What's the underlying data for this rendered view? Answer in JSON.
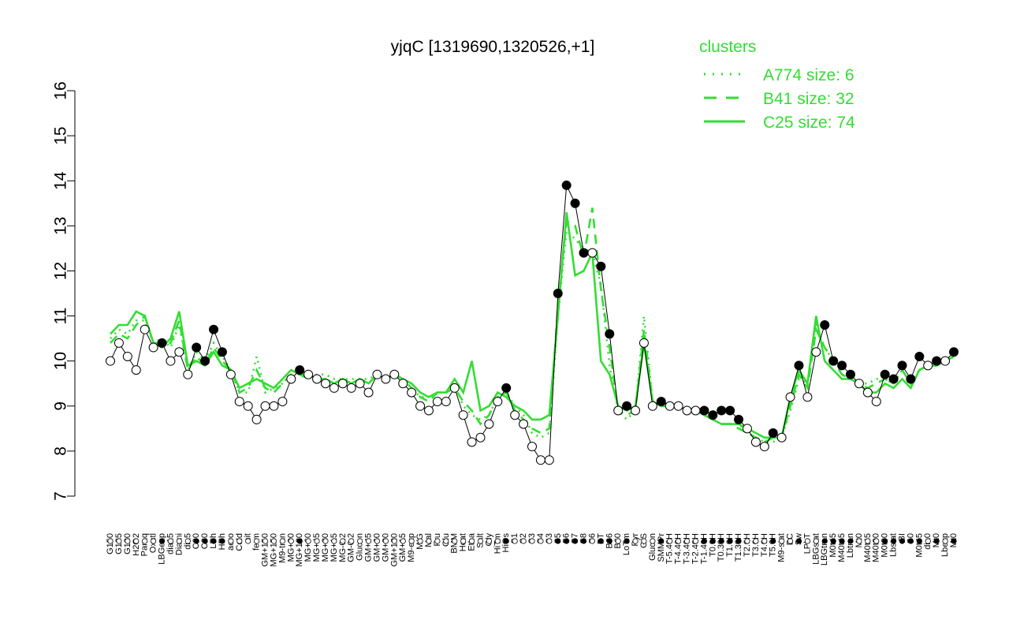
{
  "chart_data": {
    "type": "line",
    "title": "yjqC [1319690,1320526,+1]",
    "xlabel": "",
    "ylabel": "",
    "ylim": [
      7,
      16
    ],
    "yticks": [
      7,
      8,
      9,
      10,
      11,
      12,
      13,
      14,
      15,
      16
    ],
    "grid": false,
    "legend": {
      "placement": "top-right",
      "title": "clusters",
      "entries": [
        {
          "label": "A774 size: 6",
          "style": "dotted"
        },
        {
          "label": "B41 size: 32",
          "style": "dashed"
        },
        {
          "label": "C25 size: 74",
          "style": "solid"
        }
      ]
    },
    "colors": {
      "clusters": "#33dd33",
      "line": "#000000",
      "points_stroke": "#000000"
    },
    "x_tick_labels": [
      "G150",
      "G135",
      "G180",
      "H2O2",
      "Paraq",
      "Oxctl",
      "LBGexp",
      "dia15",
      "Diami",
      "dia5",
      "C90",
      "C30",
      "LPh",
      "HPh",
      "aero",
      "Cold",
      "nit",
      "ferm",
      "GM+150",
      "MG+150",
      "M9-tran",
      "MG+90",
      "MG+120",
      "MG+60",
      "MG+45",
      "MG+30",
      "MG+15",
      "MG-0.2",
      "GM-0.2",
      "Glucon",
      "GM+45",
      "GM+60",
      "GM+90",
      "GM+120",
      "GM+15",
      "M9-exp",
      "M/G",
      "Mal",
      "Fru",
      "Glu",
      "BMM",
      "Heat",
      "Etha",
      "Salt",
      "Gly",
      "HiTm",
      "HiOs",
      "S1",
      "S2",
      "S3",
      "S4",
      "S3",
      "S5",
      "S6",
      "S7",
      "S8",
      "S6",
      "BT",
      "B36",
      "B60",
      "LoTm",
      "Pyr",
      "G/S",
      "Glucon",
      "SMMPr",
      "T-5.40H",
      "T-4.40H",
      "T-3.40H",
      "T-2.40H",
      "T-1.40H",
      "T0.0H",
      "T0.30H",
      "T1.0H",
      "T1.30H",
      "T2.0H",
      "T3.0H",
      "T4.0H",
      "T5.0H",
      "M9-stat",
      "BC",
      "Sw",
      "LPhT",
      "LBGstat",
      "LBGtran",
      "M0t45",
      "M40t45",
      "Lbtran",
      "Mt0",
      "M40t45",
      "M40t90",
      "M0t90",
      "Lbstat",
      "BI",
      "S0",
      "M0t45",
      "dia0",
      "Mt0",
      "Lbexp",
      "Mt0"
    ],
    "series": [
      {
        "role": "observed",
        "values": [
          10.0,
          10.4,
          10.1,
          9.8,
          10.7,
          10.3,
          10.4,
          10.0,
          10.2,
          9.7,
          10.3,
          10.0,
          10.7,
          10.2,
          9.7,
          9.1,
          9.0,
          8.7,
          9.0,
          9.0,
          9.1,
          9.6,
          9.8,
          9.7,
          9.6,
          9.5,
          9.4,
          9.5,
          9.4,
          9.5,
          9.3,
          9.7,
          9.6,
          9.7,
          9.5,
          9.3,
          9.0,
          8.9,
          9.1,
          9.1,
          9.4,
          8.8,
          8.2,
          8.3,
          8.6,
          9.1,
          9.4,
          8.8,
          8.6,
          8.1,
          7.8,
          7.8,
          11.5,
          13.9,
          13.5,
          12.4,
          12.4,
          12.1,
          10.6,
          8.9,
          9.0,
          8.9,
          10.4,
          9.0,
          9.1,
          9.0,
          9.0,
          8.9,
          8.9,
          8.9,
          8.8,
          8.9,
          8.9,
          8.7,
          8.5,
          8.2,
          8.1,
          8.4,
          8.3,
          9.2,
          9.9,
          9.2,
          10.2,
          10.8,
          10.0,
          9.9,
          9.7,
          9.5,
          9.3,
          9.1,
          9.7,
          9.6,
          9.9,
          9.6,
          10.1,
          9.9,
          10.0,
          10.0,
          10.2
        ]
      },
      {
        "name": "A774 size: 6",
        "style": "dotted",
        "values": [
          10.5,
          10.7,
          10.6,
          10.9,
          10.9,
          10.4,
          10.5,
          10.3,
          10.8,
          9.8,
          10.2,
          10.0,
          10.4,
          10.1,
          9.8,
          9.3,
          9.3,
          10.1,
          9.3,
          9.4,
          9.5,
          9.7,
          9.8,
          9.6,
          9.7,
          9.7,
          9.6,
          9.6,
          9.6,
          9.6,
          9.6,
          9.7,
          9.6,
          9.7,
          9.6,
          9.4,
          9.2,
          9.2,
          9.3,
          9.3,
          9.5,
          9.0,
          8.8,
          8.7,
          8.8,
          9.2,
          9.3,
          9.0,
          8.8,
          8.4,
          8.3,
          8.4,
          11.0,
          12.9,
          12.7,
          12.5,
          12.4,
          11.7,
          9.9,
          8.9,
          8.7,
          8.9,
          11.0,
          9.1,
          9.1,
          9.0,
          9.0,
          8.9,
          8.9,
          8.8,
          8.7,
          8.6,
          8.6,
          8.6,
          8.4,
          8.3,
          8.2,
          8.2,
          8.3,
          8.9,
          9.6,
          9.5,
          10.8,
          10.3,
          10.0,
          9.7,
          9.6,
          9.5,
          9.5,
          9.6,
          9.6,
          9.5,
          9.8,
          9.5,
          9.8,
          9.9,
          9.9,
          10.0,
          10.1
        ]
      },
      {
        "name": "B41 size: 32",
        "style": "dashed",
        "values": [
          10.4,
          10.6,
          10.5,
          10.8,
          11.0,
          10.4,
          10.4,
          10.4,
          10.9,
          9.8,
          10.1,
          9.9,
          10.3,
          10.0,
          9.8,
          9.3,
          9.4,
          9.8,
          9.4,
          9.3,
          9.5,
          9.7,
          9.7,
          9.6,
          9.6,
          9.6,
          9.5,
          9.6,
          9.5,
          9.6,
          9.5,
          9.7,
          9.6,
          9.7,
          9.6,
          9.4,
          9.2,
          9.1,
          9.3,
          9.3,
          9.4,
          9.1,
          8.9,
          8.6,
          8.8,
          9.2,
          9.3,
          8.9,
          8.7,
          8.5,
          8.4,
          8.5,
          11.2,
          13.1,
          13.0,
          12.3,
          13.4,
          11.6,
          10.3,
          8.9,
          8.8,
          8.9,
          10.7,
          9.1,
          9.0,
          9.0,
          9.0,
          8.9,
          8.9,
          8.8,
          8.7,
          8.6,
          8.6,
          8.5,
          8.4,
          8.3,
          8.2,
          8.3,
          8.3,
          9.0,
          9.7,
          9.4,
          10.7,
          10.3,
          10.0,
          9.7,
          9.6,
          9.5,
          9.4,
          9.5,
          9.6,
          9.5,
          9.8,
          9.5,
          9.8,
          9.9,
          9.9,
          10.0,
          10.1
        ]
      },
      {
        "name": "C25 size: 74",
        "style": "solid",
        "values": [
          10.6,
          10.8,
          10.8,
          11.1,
          11.0,
          10.4,
          10.3,
          10.5,
          11.1,
          9.9,
          10.0,
          9.9,
          10.2,
          9.9,
          9.8,
          9.4,
          9.5,
          9.6,
          9.5,
          9.4,
          9.6,
          9.8,
          9.7,
          9.7,
          9.6,
          9.6,
          9.5,
          9.6,
          9.5,
          9.6,
          9.5,
          9.7,
          9.6,
          9.7,
          9.6,
          9.5,
          9.3,
          9.2,
          9.3,
          9.3,
          9.6,
          9.3,
          10.0,
          8.9,
          9.0,
          9.3,
          9.2,
          9.0,
          8.9,
          8.7,
          8.7,
          8.8,
          11.0,
          13.3,
          11.9,
          12.0,
          12.4,
          10.0,
          9.7,
          9.0,
          8.9,
          9.0,
          10.4,
          9.1,
          9.0,
          9.0,
          9.0,
          8.9,
          8.9,
          8.8,
          8.7,
          8.6,
          8.6,
          8.6,
          8.5,
          8.4,
          8.3,
          8.3,
          8.3,
          9.2,
          9.8,
          9.5,
          11.0,
          10.0,
          9.8,
          9.6,
          9.6,
          9.5,
          9.3,
          9.3,
          9.5,
          9.4,
          9.6,
          9.4,
          9.8,
          9.9,
          9.9,
          10.0,
          10.1
        ]
      }
    ]
  }
}
